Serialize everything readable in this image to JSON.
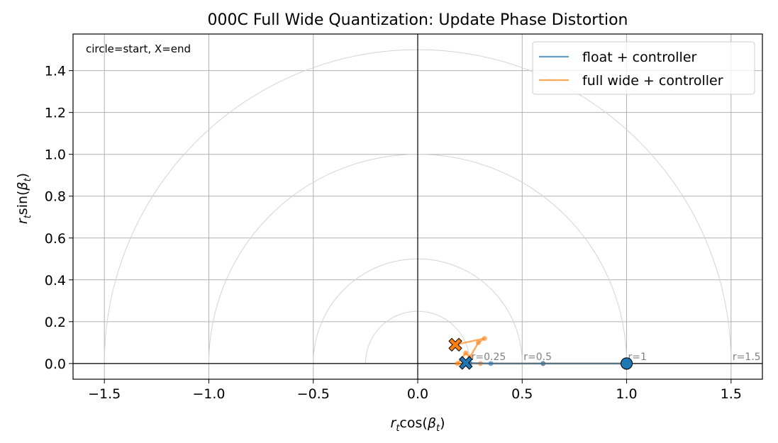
{
  "chart_data": {
    "type": "line",
    "title": "000C Full Wide Quantization: Update Phase Distortion",
    "xlabel_base": "r",
    "xlabel_sub": "t",
    "xlabel_fn": "cos(",
    "xlabel_beta": "β",
    "xlabel_beta_sub": "t",
    "xlabel_close": ")",
    "ylabel_base": "r",
    "ylabel_sub": "t",
    "ylabel_fn": "sin(",
    "ylabel_beta": "β",
    "ylabel_beta_sub": "t",
    "ylabel_close": ")",
    "xlim": [
      -1.65,
      1.65
    ],
    "ylim": [
      -0.075,
      1.575
    ],
    "xticks": [
      -1.5,
      -1.0,
      -0.5,
      0.0,
      0.5,
      1.0,
      1.5
    ],
    "xtick_labels": [
      "−1.5",
      "−1.0",
      "−0.5",
      "0.0",
      "0.5",
      "1.0",
      "1.5"
    ],
    "yticks": [
      0.0,
      0.2,
      0.4,
      0.6,
      0.8,
      1.0,
      1.2,
      1.4
    ],
    "ytick_labels": [
      "0.0",
      "0.2",
      "0.4",
      "0.6",
      "0.8",
      "1.0",
      "1.2",
      "1.4"
    ],
    "grid": true,
    "legend_position": "top-right",
    "annotation": "circle=start, X=end",
    "reference_circles": [
      {
        "r": 0.25,
        "label": "r=0.25"
      },
      {
        "r": 0.5,
        "label": "r=0.5"
      },
      {
        "r": 1.0,
        "label": "r=1"
      },
      {
        "r": 1.5,
        "label": "r=1.5"
      }
    ],
    "series": [
      {
        "name": "float + controller",
        "color": "#1f77b4",
        "x": [
          1.0,
          0.6,
          0.35,
          0.25,
          0.23
        ],
        "y": [
          0.0,
          0.0,
          0.0,
          0.002,
          0.003
        ]
      },
      {
        "name": "full wide + controller",
        "color": "#ff7f0e",
        "x": [
          1.0,
          0.6,
          0.3,
          0.19,
          0.23,
          0.25,
          0.29,
          0.32,
          0.18
        ],
        "y": [
          0.0,
          0.0,
          0.0,
          0.0,
          0.05,
          0.03,
          0.1,
          0.12,
          0.09
        ]
      }
    ]
  }
}
